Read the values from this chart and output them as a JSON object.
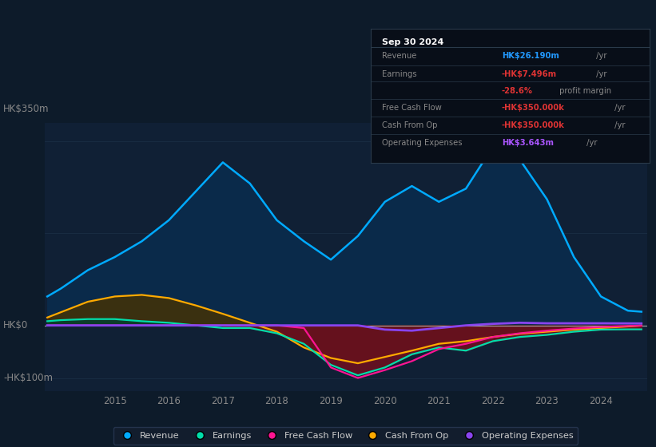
{
  "background_color": "#0d1b2a",
  "plot_bg_color": "#102035",
  "x_years": [
    2013.75,
    2014.0,
    2014.5,
    2015.0,
    2015.5,
    2016.0,
    2016.5,
    2017.0,
    2017.5,
    2018.0,
    2018.5,
    2019.0,
    2019.5,
    2020.0,
    2020.5,
    2021.0,
    2021.5,
    2022.0,
    2022.5,
    2023.0,
    2023.5,
    2024.0,
    2024.5,
    2024.75
  ],
  "revenue": [
    55,
    70,
    105,
    130,
    160,
    200,
    255,
    310,
    270,
    200,
    160,
    125,
    170,
    235,
    265,
    235,
    260,
    340,
    315,
    240,
    130,
    55,
    28,
    26
  ],
  "earnings": [
    8,
    10,
    12,
    12,
    8,
    5,
    0,
    -5,
    -5,
    -15,
    -35,
    -75,
    -95,
    -80,
    -55,
    -42,
    -48,
    -30,
    -22,
    -18,
    -12,
    -8,
    -7.5,
    -7.5
  ],
  "free_cash_flow": [
    0,
    0,
    0,
    0,
    0,
    0,
    0,
    0,
    0,
    0,
    -5,
    -80,
    -100,
    -85,
    -68,
    -45,
    -35,
    -22,
    -15,
    -10,
    -6,
    -3,
    -1,
    -0.35
  ],
  "cash_from_op": [
    15,
    25,
    45,
    55,
    58,
    52,
    38,
    22,
    5,
    -12,
    -42,
    -62,
    -72,
    -60,
    -48,
    -35,
    -30,
    -22,
    -16,
    -12,
    -8,
    -5,
    -2,
    -0.35
  ],
  "operating_expenses": [
    0,
    0,
    0,
    0,
    0,
    0,
    0,
    0,
    0,
    0,
    0,
    0,
    0,
    -8,
    -10,
    -5,
    0,
    3,
    5,
    4,
    4,
    4,
    3.8,
    3.643
  ],
  "revenue_color": "#00aaff",
  "revenue_fill_color": "#0a2a4a",
  "earnings_color": "#00ddaa",
  "earnings_fill_color_pos": "#0d3d2a",
  "earnings_fill_color_neg": "#6b1020",
  "free_cash_flow_color": "#ff1493",
  "cash_from_op_color": "#ffaa00",
  "cash_from_op_fill_pos_color": "#3a3010",
  "cash_from_op_fill_neg_color": "#3a1a00",
  "operating_expenses_color": "#8844ee",
  "zero_line_color": "#aaaaaa",
  "grid_color": "#1a2e44",
  "x_tick_labels": [
    "2015",
    "2016",
    "2017",
    "2018",
    "2019",
    "2020",
    "2021",
    "2022",
    "2023",
    "2024"
  ],
  "x_tick_positions": [
    2015,
    2016,
    2017,
    2018,
    2019,
    2020,
    2021,
    2022,
    2023,
    2024
  ],
  "ylim": [
    -125,
    385
  ],
  "xlim": [
    2013.7,
    2024.85
  ],
  "ylabel_top": "HK$350m",
  "ylabel_zero": "HK$0",
  "ylabel_bot": "-HK$100m",
  "y_top_val": 350,
  "y_zero_val": 0,
  "y_bot_val": -100,
  "legend_items": [
    {
      "label": "Revenue",
      "color": "#00aaff"
    },
    {
      "label": "Earnings",
      "color": "#00ddaa"
    },
    {
      "label": "Free Cash Flow",
      "color": "#ff1493"
    },
    {
      "label": "Cash From Op",
      "color": "#ffaa00"
    },
    {
      "label": "Operating Expenses",
      "color": "#8844ee"
    }
  ],
  "infobox": {
    "date": "Sep 30 2024",
    "rows": [
      {
        "label": "Revenue",
        "value": "HK$26.190m",
        "unit": "/yr",
        "value_color": "#2299ff"
      },
      {
        "label": "Earnings",
        "value": "-HK$7.496m",
        "unit": "/yr",
        "value_color": "#dd3333"
      },
      {
        "label": "",
        "value": "-28.6%",
        "unit": "profit margin",
        "value_color": "#dd3333"
      },
      {
        "label": "Free Cash Flow",
        "value": "-HK$350.000k",
        "unit": "/yr",
        "value_color": "#dd3333"
      },
      {
        "label": "Cash From Op",
        "value": "-HK$350.000k",
        "unit": "/yr",
        "value_color": "#dd3333"
      },
      {
        "label": "Operating Expenses",
        "value": "HK$3.643m",
        "unit": "/yr",
        "value_color": "#aa55ff"
      }
    ]
  }
}
